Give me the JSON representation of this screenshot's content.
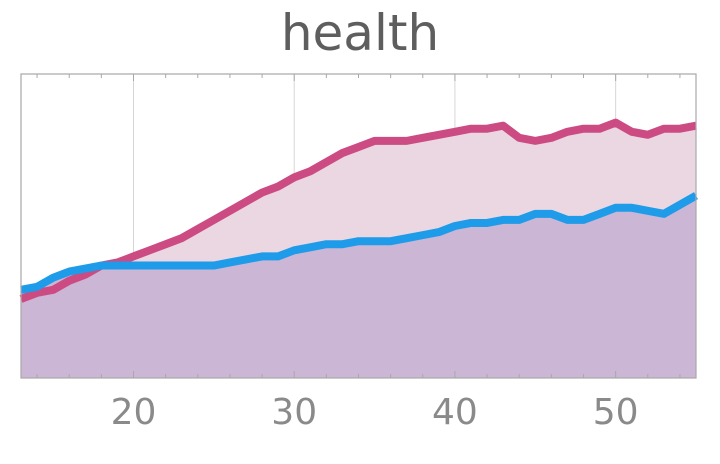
{
  "chart_data": {
    "type": "area",
    "title": "health",
    "xlabel": "",
    "ylabel": "",
    "xlim": [
      13,
      55
    ],
    "ylim": [
      0,
      1
    ],
    "xticks": [
      20,
      30,
      40,
      50
    ],
    "grid": "vertical",
    "legend": "none",
    "x": [
      13,
      14,
      15,
      16,
      17,
      18,
      19,
      20,
      21,
      22,
      23,
      24,
      25,
      26,
      27,
      28,
      29,
      30,
      31,
      32,
      33,
      34,
      35,
      36,
      37,
      38,
      39,
      40,
      41,
      42,
      43,
      44,
      45,
      46,
      47,
      48,
      49,
      50,
      51,
      52,
      53,
      54,
      55
    ],
    "series": [
      {
        "color": "#cc4b82",
        "fill": "#ead7e1",
        "values": [
          0.26,
          0.28,
          0.29,
          0.32,
          0.34,
          0.37,
          0.38,
          0.4,
          0.42,
          0.44,
          0.46,
          0.49,
          0.52,
          0.55,
          0.58,
          0.61,
          0.63,
          0.66,
          0.68,
          0.71,
          0.74,
          0.76,
          0.78,
          0.78,
          0.78,
          0.79,
          0.8,
          0.81,
          0.82,
          0.82,
          0.83,
          0.79,
          0.78,
          0.79,
          0.81,
          0.82,
          0.82,
          0.84,
          0.81,
          0.8,
          0.82,
          0.82,
          0.83
        ]
      },
      {
        "color": "#1e9be9",
        "fill": "#cbb6d5",
        "values": [
          0.29,
          0.3,
          0.33,
          0.35,
          0.36,
          0.37,
          0.37,
          0.37,
          0.37,
          0.37,
          0.37,
          0.37,
          0.37,
          0.38,
          0.39,
          0.4,
          0.4,
          0.42,
          0.43,
          0.44,
          0.44,
          0.45,
          0.45,
          0.45,
          0.46,
          0.47,
          0.48,
          0.5,
          0.51,
          0.51,
          0.52,
          0.52,
          0.54,
          0.54,
          0.52,
          0.52,
          0.54,
          0.56,
          0.56,
          0.55,
          0.54,
          0.57,
          0.6
        ]
      }
    ]
  }
}
